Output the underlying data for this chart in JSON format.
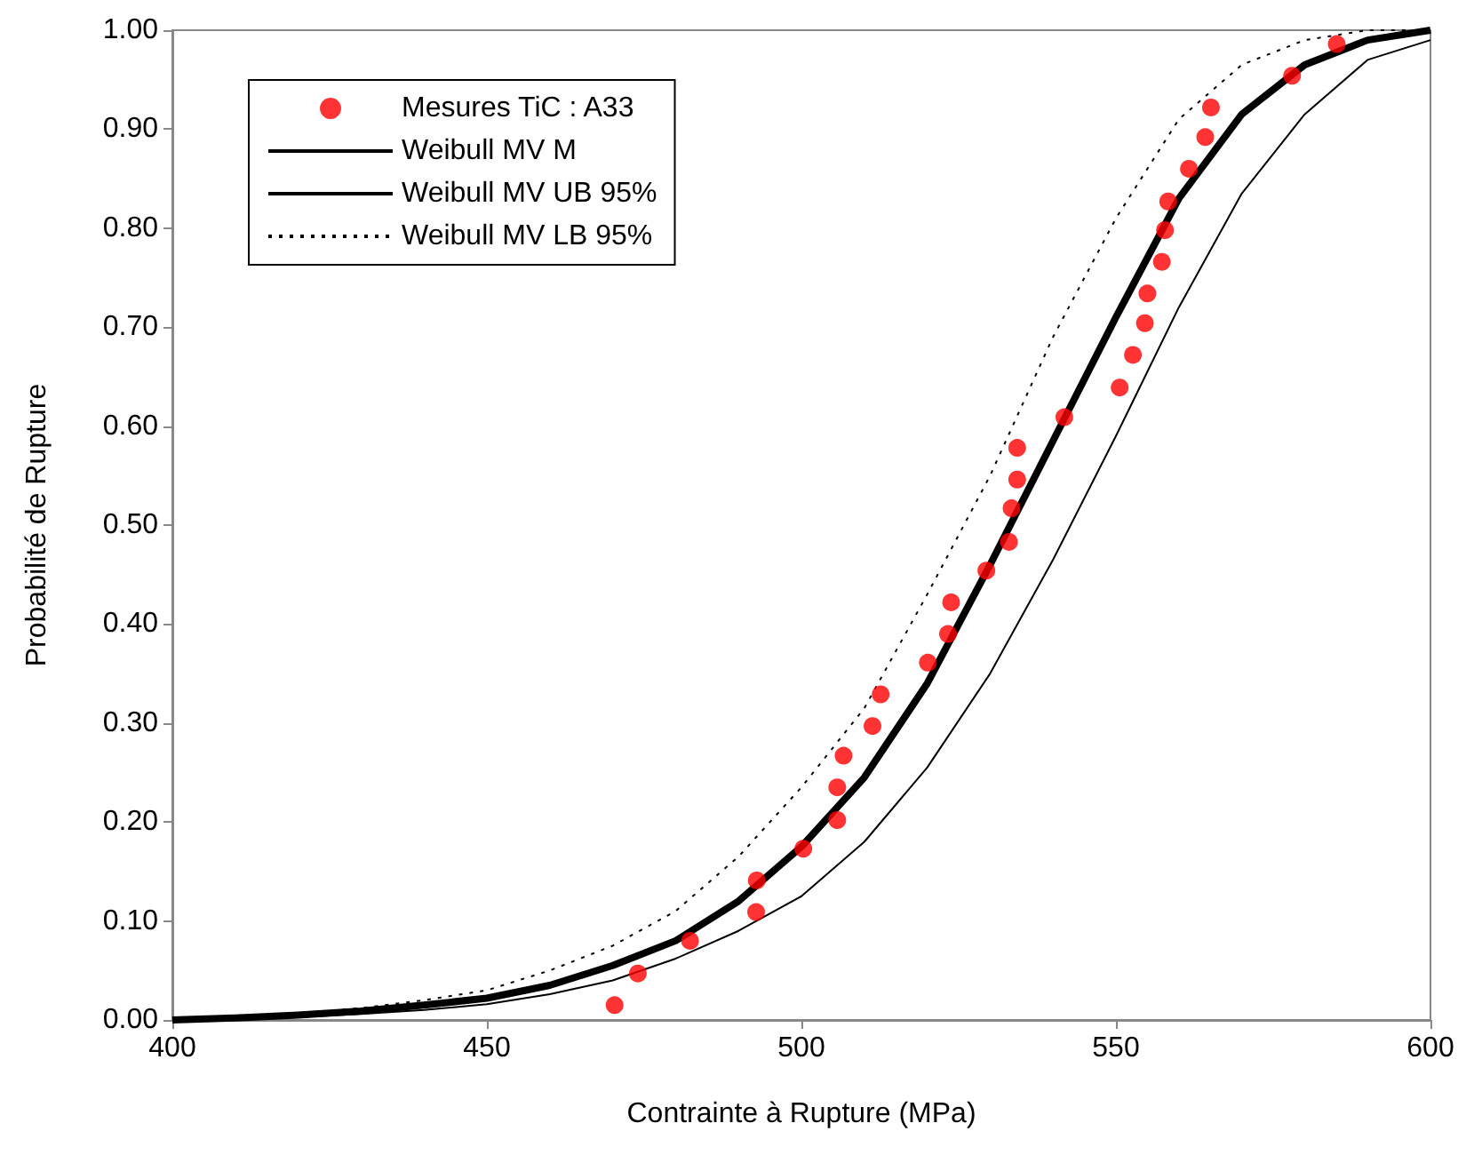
{
  "chart_data": {
    "type": "line",
    "xlabel": "Contrainte à Rupture (MPa)",
    "ylabel": "Probabilité de Rupture",
    "xlim": [
      400,
      600
    ],
    "xticks": [
      400,
      450,
      500,
      550,
      600
    ],
    "ylim": [
      0,
      1
    ],
    "yticks": [
      {
        "value": 0,
        "label": "0.00"
      },
      {
        "value": 0.1,
        "label": "0.10"
      },
      {
        "value": 0.2,
        "label": "0.20"
      },
      {
        "value": 0.3,
        "label": "0.30"
      },
      {
        "value": 0.4,
        "label": "0.40"
      },
      {
        "value": 0.5,
        "label": "0.50"
      },
      {
        "value": 0.6,
        "label": "0.60"
      },
      {
        "value": 0.7,
        "label": "0.70"
      },
      {
        "value": 0.8,
        "label": "0.80"
      },
      {
        "value": 0.9,
        "label": "0.90"
      },
      {
        "value": 1,
        "label": "1.00"
      }
    ],
    "grid": false,
    "legend": "top left",
    "series": [
      {
        "name": "Mesures TiC : A33",
        "type": "scatter",
        "marker": "circle",
        "color": "#ff0000",
        "x": [
          470.3,
          474.0,
          482.3,
          492.8,
          492.9,
          500.3,
          505.7,
          505.7,
          506.7,
          511.3,
          512.6,
          520.1,
          523.3,
          523.8,
          529.4,
          533.0,
          533.4,
          534.3,
          534.3,
          541.8,
          550.6,
          552.7,
          554.6,
          555.0,
          557.3,
          557.8,
          558.3,
          561.6,
          564.2,
          565.1,
          578.0,
          585.1
        ],
        "values": [
          0.015,
          0.047,
          0.08,
          0.109,
          0.141,
          0.173,
          0.202,
          0.235,
          0.267,
          0.297,
          0.329,
          0.361,
          0.39,
          0.422,
          0.454,
          0.483,
          0.517,
          0.546,
          0.578,
          0.609,
          0.639,
          0.672,
          0.704,
          0.734,
          0.766,
          0.798,
          0.827,
          0.86,
          0.892,
          0.922,
          0.954,
          0.986
        ]
      },
      {
        "name": "Weibull MV M",
        "marker": "none",
        "line_style": "solid",
        "color": "#000000",
        "x": [
          400,
          410,
          420,
          430,
          440,
          450,
          460,
          470,
          480,
          490,
          500,
          510,
          520,
          530,
          540,
          550,
          560,
          570,
          580,
          590,
          600
        ],
        "values": [
          0,
          0.002,
          0.005,
          0.009,
          0.015,
          0.022,
          0.035,
          0.055,
          0.08,
          0.12,
          0.175,
          0.245,
          0.34,
          0.46,
          0.585,
          0.71,
          0.83,
          0.915,
          0.965,
          0.99,
          1.0
        ]
      },
      {
        "name": "Weibull MV UB 95%",
        "marker": "none",
        "line_style": "solid",
        "color": "#000000",
        "x": [
          400,
          410,
          420,
          430,
          440,
          450,
          460,
          470,
          480,
          490,
          500,
          510,
          520,
          530,
          540,
          550,
          560,
          570,
          580,
          590,
          600
        ],
        "values": [
          0,
          0.001,
          0.003,
          0.006,
          0.01,
          0.016,
          0.026,
          0.04,
          0.062,
          0.09,
          0.125,
          0.18,
          0.255,
          0.35,
          0.465,
          0.59,
          0.72,
          0.835,
          0.915,
          0.97,
          0.99
        ]
      },
      {
        "name": "Weibull MV LB 95%",
        "marker": "none",
        "line_style": "dotted",
        "color": "#000000",
        "x": [
          400,
          410,
          420,
          430,
          440,
          450,
          460,
          470,
          480,
          490,
          500,
          510,
          520,
          530,
          540,
          550,
          560,
          570,
          580,
          590,
          600
        ],
        "values": [
          0,
          0.003,
          0.007,
          0.012,
          0.02,
          0.03,
          0.05,
          0.075,
          0.11,
          0.165,
          0.235,
          0.315,
          0.43,
          0.55,
          0.69,
          0.81,
          0.91,
          0.965,
          0.99,
          1.0,
          1.0
        ]
      }
    ]
  }
}
